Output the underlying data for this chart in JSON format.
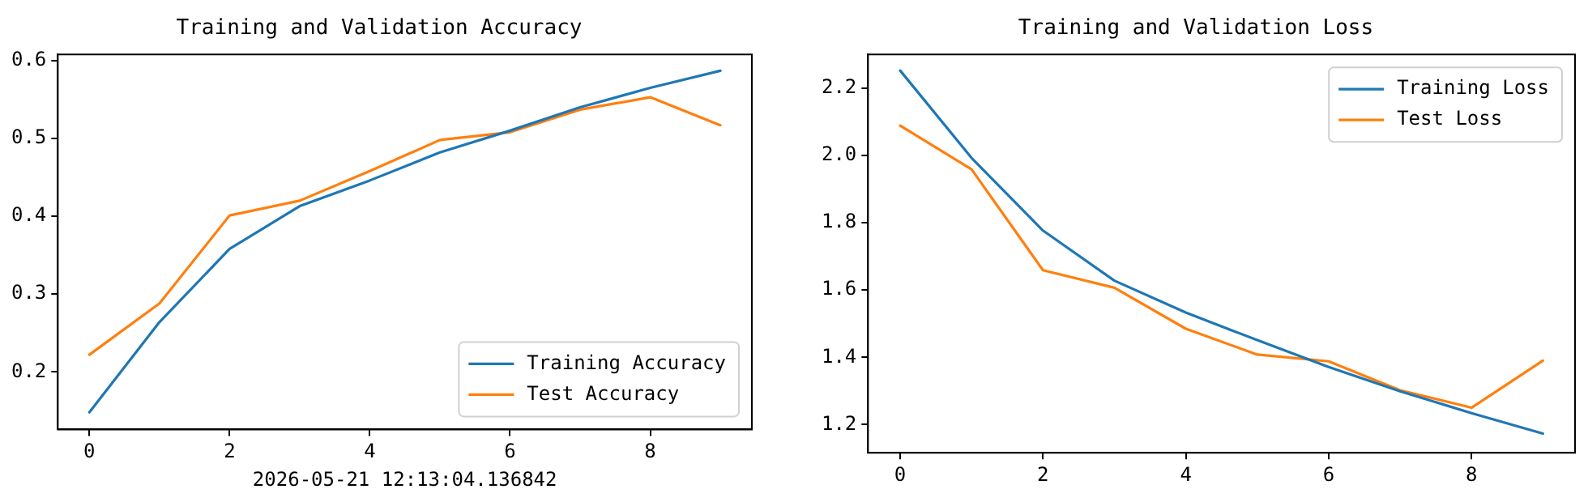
{
  "chart_data": [
    {
      "type": "line",
      "title": "Training and Validation Accuracy",
      "xlabel": "2026-05-21 12:13:04.136842",
      "x": [
        0,
        1,
        2,
        3,
        4,
        5,
        6,
        7,
        8,
        9
      ],
      "series": [
        {
          "name": "Training Accuracy",
          "color": "#1f77b4",
          "values": [
            0.148,
            0.264,
            0.358,
            0.413,
            0.446,
            0.482,
            0.51,
            0.54,
            0.565,
            0.587
          ]
        },
        {
          "name": "Test Accuracy",
          "color": "#ff7f0e",
          "values": [
            0.222,
            0.288,
            0.401,
            0.42,
            0.458,
            0.498,
            0.508,
            0.537,
            0.553,
            0.517
          ]
        }
      ],
      "xlim": [
        -0.45,
        9.45
      ],
      "xticks": [
        0,
        2,
        4,
        6,
        8
      ],
      "ylim": [
        0.126,
        0.608
      ],
      "yticks": [
        0.2,
        0.3,
        0.4,
        0.5,
        0.6
      ],
      "grid": false,
      "legend": "bottom right",
      "marker": "none",
      "line_style": "solid"
    },
    {
      "type": "line",
      "title": "Training and Validation Loss",
      "x": [
        0,
        1,
        2,
        3,
        4,
        5,
        6,
        7,
        8,
        9
      ],
      "series": [
        {
          "name": "Training Loss",
          "color": "#1f77b4",
          "values": [
            2.253,
            1.993,
            1.777,
            1.628,
            1.533,
            1.451,
            1.371,
            1.299,
            1.234,
            1.173
          ]
        },
        {
          "name": "Test Loss",
          "color": "#ff7f0e",
          "values": [
            2.089,
            1.959,
            1.659,
            1.607,
            1.485,
            1.408,
            1.388,
            1.302,
            1.25,
            1.39
          ]
        }
      ],
      "xlim": [
        -0.45,
        9.45
      ],
      "xticks": [
        0,
        2,
        4,
        6,
        8
      ],
      "ylim": [
        1.116,
        2.301
      ],
      "yticks": [
        1.2,
        1.4,
        1.6,
        1.8,
        {
          "value": 2,
          "label": "2.0"
        },
        2.2
      ],
      "grid": false,
      "legend": "top right",
      "marker": "none",
      "line_style": "solid"
    }
  ]
}
